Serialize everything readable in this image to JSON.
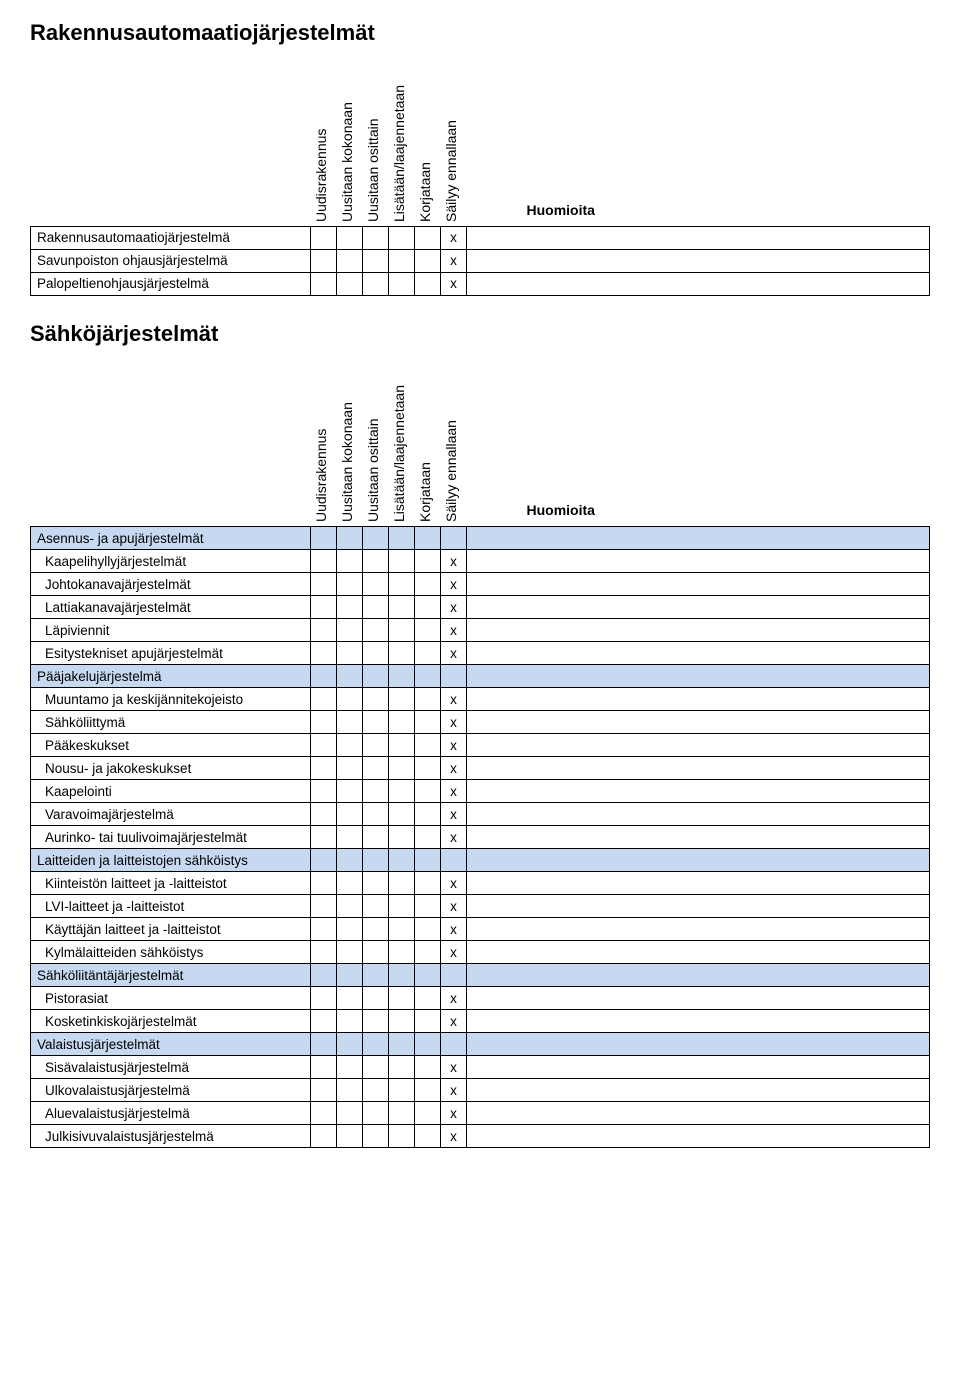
{
  "page_title": "Rakennusautomaatiojärjestelmät",
  "columns": {
    "c1": "Uudisrakennus",
    "c2": "Uusitaan kokonaan",
    "c3": "Uusitaan osittain",
    "c4": "Lisätään/laajennetaan",
    "c5": "Korjataan",
    "c6": "Säilyy ennallaan",
    "notes": "Huomioita"
  },
  "colors": {
    "section_bg": "#c6d9f1",
    "border": "#000000",
    "background": "#ffffff",
    "text": "#000000"
  },
  "fonts": {
    "heading_size_pt": 22,
    "body_size_pt": 14,
    "cell_size_pt": 13.5
  },
  "section1": {
    "rows": [
      {
        "label": "Rakennusautomaatiojärjestelmä",
        "mark_col": 6
      },
      {
        "label": "Savunpoiston ohjausjärjestelmä",
        "mark_col": 6
      },
      {
        "label": "Palopeltienohjausjärjestelmä",
        "mark_col": 6
      }
    ]
  },
  "section2_title": "Sähköjärjestelmät",
  "section2": {
    "groups": [
      {
        "header": "Asennus- ja apujärjestelmät",
        "rows": [
          {
            "label": "Kaapelihyllyjärjestelmät",
            "mark_col": 6
          },
          {
            "label": "Johtokanavajärjestelmät",
            "mark_col": 6
          },
          {
            "label": "Lattiakanavajärjestelmät",
            "mark_col": 6
          },
          {
            "label": "Läpiviennit",
            "mark_col": 6
          },
          {
            "label": "Esitystekniset apujärjestelmät",
            "mark_col": 6
          }
        ]
      },
      {
        "header": "Pääjakelujärjestelmä",
        "rows": [
          {
            "label": "Muuntamo ja keskijännitekojeisto",
            "mark_col": 6
          },
          {
            "label": "Sähköliittymä",
            "mark_col": 6
          },
          {
            "label": "Pääkeskukset",
            "mark_col": 6
          },
          {
            "label": "Nousu- ja jakokeskukset",
            "mark_col": 6
          },
          {
            "label": "Kaapelointi",
            "mark_col": 6
          },
          {
            "label": "Varavoimajärjestelmä",
            "mark_col": 6
          },
          {
            "label": "Aurinko- tai tuulivoimajärjestelmät",
            "mark_col": 6
          }
        ]
      },
      {
        "header": "Laitteiden ja laitteistojen sähköistys",
        "rows": [
          {
            "label": "Kiinteistön laitteet ja -laitteistot",
            "mark_col": 6
          },
          {
            "label": "LVI-laitteet ja -laitteistot",
            "mark_col": 6
          },
          {
            "label": "Käyttäjän laitteet ja -laitteistot",
            "mark_col": 6
          },
          {
            "label": "Kylmälaitteiden sähköistys",
            "mark_col": 6
          }
        ]
      },
      {
        "header": "Sähköliitäntäjärjestelmät",
        "rows": [
          {
            "label": "Pistorasiat",
            "mark_col": 6
          },
          {
            "label": "Kosketinkiskojärjestelmät",
            "mark_col": 6
          }
        ]
      },
      {
        "header": "Valaistusjärjestelmät",
        "rows": [
          {
            "label": "Sisävalaistusjärjestelmä",
            "mark_col": 6
          },
          {
            "label": "Ulkovalaistusjärjestelmä",
            "mark_col": 6
          },
          {
            "label": "Aluevalaistusjärjestelmä",
            "mark_col": 6
          },
          {
            "label": "Julkisivuvalaistusjärjestelmä",
            "mark_col": 6
          }
        ]
      }
    ]
  },
  "mark_symbol": "x"
}
